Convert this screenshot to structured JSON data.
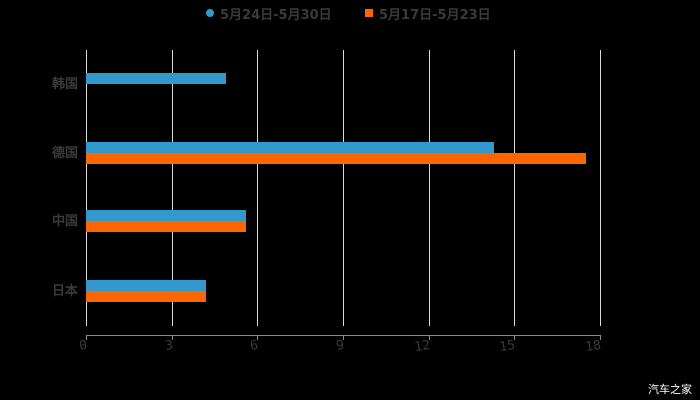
{
  "chart_data": {
    "type": "bar",
    "orientation": "horizontal",
    "title": "",
    "xlabel": "",
    "ylabel": "",
    "categories": [
      "韩国",
      "德国",
      "中国",
      "日本"
    ],
    "series": [
      {
        "name": "5月24日-5月30日",
        "color": "#3399cc",
        "marker": "circle",
        "values": [
          4.9,
          14.3,
          5.6,
          4.2
        ]
      },
      {
        "name": "5月17日-5月23日",
        "color": "#ff6600",
        "marker": "square",
        "values": [
          null,
          17.5,
          5.6,
          4.2
        ]
      }
    ],
    "xlim": [
      0,
      18
    ],
    "xticks": [
      0,
      3,
      6,
      9,
      12,
      15,
      18
    ],
    "xtick_labels": [
      "0",
      "3",
      "6",
      "9",
      "12",
      "15",
      "18"
    ],
    "grid": {
      "vertical": true,
      "horizontal": false,
      "color": "#d9d9d9"
    },
    "legend_position": "top-center",
    "background": "#000000"
  },
  "legend": {
    "items": [
      {
        "label": "5月24日-5月30日",
        "color": "#3399cc"
      },
      {
        "label": "5月17日-5月23日",
        "color": "#ff6600"
      }
    ]
  },
  "axis": {
    "tick_labels": [
      "0",
      "3",
      "6",
      "9",
      "12",
      "15",
      "18"
    ]
  },
  "categories": [
    "韩国",
    "德国",
    "中国",
    "日本"
  ],
  "watermark": "汽车之家"
}
